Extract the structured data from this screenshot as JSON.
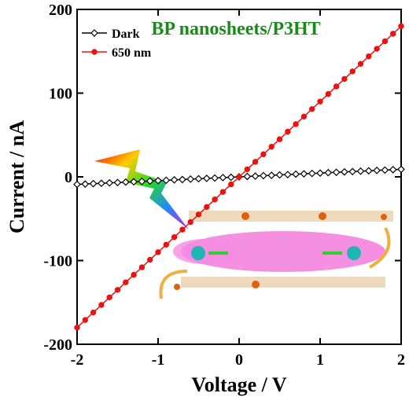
{
  "chart_data": {
    "type": "line",
    "annotation": "BP nanosheets/P3HT",
    "xlabel": "Voltage / V",
    "ylabel": "Current / nA",
    "xlim": [
      -2,
      2
    ],
    "ylim": [
      -200,
      200
    ],
    "xticks": [
      -2,
      -1,
      0,
      1,
      2
    ],
    "yticks": [
      -200,
      -100,
      0,
      100,
      200
    ],
    "legend": "upper left",
    "x": [
      -2,
      -1.9,
      -1.8,
      -1.7,
      -1.6,
      -1.5,
      -1.4,
      -1.3,
      -1.2,
      -1.1,
      -1,
      -0.9,
      -0.8,
      -0.7,
      -0.6,
      -0.5,
      -0.4,
      -0.3,
      -0.2,
      -0.1,
      0,
      0.1,
      0.2,
      0.3,
      0.4,
      0.5,
      0.6,
      0.7,
      0.8,
      0.9,
      1,
      1.1,
      1.2,
      1.3,
      1.4,
      1.5,
      1.6,
      1.7,
      1.8,
      1.9,
      2
    ],
    "series": [
      {
        "name": "Dark",
        "color": "#000000",
        "marker": "open-diamond",
        "values": [
          -9,
          -8.6,
          -8.1,
          -7.7,
          -7.2,
          -6.8,
          -6.3,
          -5.9,
          -5.4,
          -5,
          -4.5,
          -4.1,
          -3.6,
          -3.2,
          -2.7,
          -2.3,
          -1.8,
          -1.4,
          -0.9,
          -0.5,
          0,
          0.5,
          0.9,
          1.4,
          1.8,
          2.3,
          2.7,
          3.2,
          3.6,
          4.1,
          4.5,
          5,
          5.4,
          5.9,
          6.3,
          6.8,
          7.2,
          7.7,
          8.1,
          8.6,
          9
        ]
      },
      {
        "name": "650 nm",
        "color": "#ee1111",
        "marker": "circle",
        "values": [
          -180,
          -171,
          -162,
          -153,
          -144,
          -135,
          -126,
          -117,
          -108,
          -99,
          -90,
          -81,
          -72,
          -63,
          -54,
          -45,
          -36,
          -27,
          -18,
          -9,
          0,
          9,
          18,
          27,
          36,
          45,
          54,
          63,
          72,
          81,
          90,
          99,
          108,
          117,
          126,
          135,
          144,
          153,
          162,
          171,
          180
        ]
      }
    ]
  }
}
